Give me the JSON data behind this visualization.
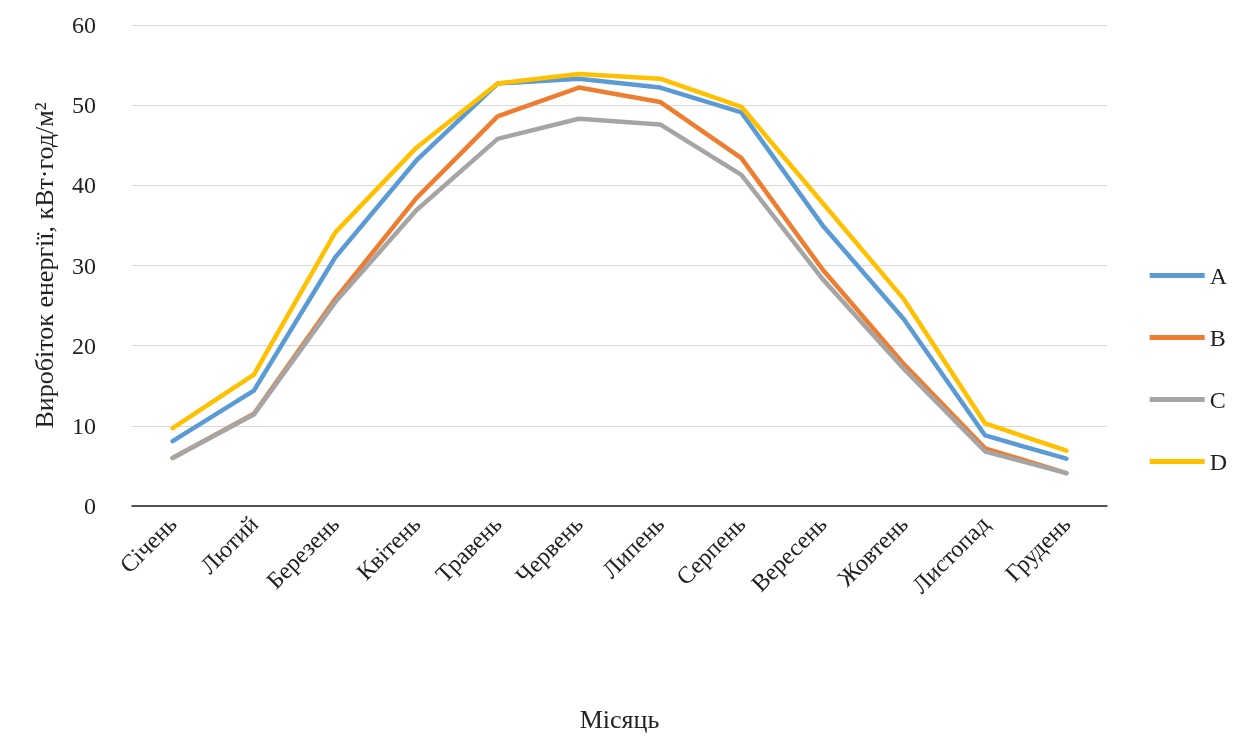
{
  "chart_data": {
    "type": "line",
    "xlabel": "Місяць",
    "ylabel": "Виробіток енергії, кВт·год/м²",
    "categories": [
      "Січень",
      "Лютий",
      "Березень",
      "Квітень",
      "Травень",
      "Червень",
      "Липень",
      "Серпень",
      "Вересень",
      "Жовтень",
      "Листопад",
      "Грудень"
    ],
    "series": [
      {
        "name": "A",
        "color": "#5b9bd5",
        "values": [
          8.1,
          14.4,
          31,
          43.1,
          52.7,
          53.3,
          52.2,
          49.1,
          35,
          23.3,
          8.8,
          5.9
        ]
      },
      {
        "name": "B",
        "color": "#ed7d31",
        "values": [
          6,
          11.5,
          25.8,
          38.4,
          48.6,
          52.2,
          50.4,
          43.4,
          29.5,
          17.7,
          7.2,
          4.1
        ]
      },
      {
        "name": "C",
        "color": "#a5a5a5",
        "values": [
          6,
          11.4,
          25.4,
          36.9,
          45.8,
          48.3,
          47.6,
          41.3,
          28.3,
          17.1,
          6.8,
          4.1
        ]
      },
      {
        "name": "D",
        "color": "#ffc000",
        "values": [
          9.7,
          16.4,
          34.1,
          44.7,
          52.7,
          53.9,
          53.3,
          49.8,
          37.8,
          25.8,
          10.3,
          6.9
        ]
      }
    ],
    "ylim": [
      0,
      60
    ],
    "yticks": [
      0,
      10,
      20,
      30,
      40,
      50,
      60
    ],
    "grid": "y",
    "legend": "right",
    "marker": "none",
    "line_style": "solid"
  }
}
